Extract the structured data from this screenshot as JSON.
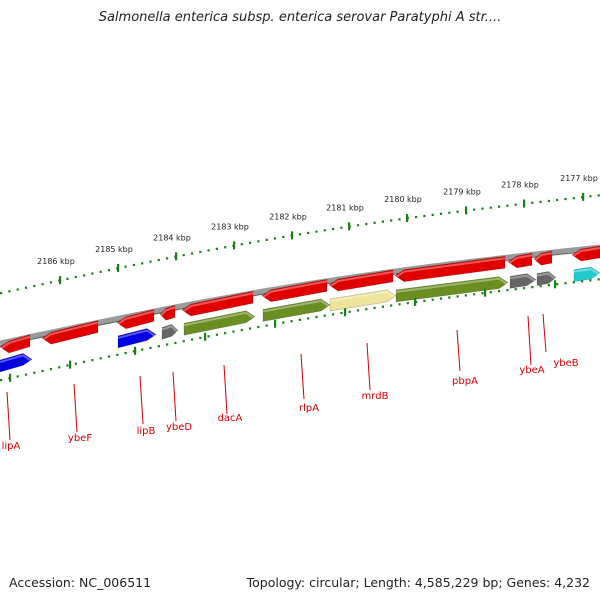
{
  "title": "Salmonella enterica subsp. enterica serovar Paratyphi A str....",
  "footer": {
    "accession": "Accession: NC_006511",
    "stats": "Topology: circular; Length: 4,585,229 bp; Genes: 4,232"
  },
  "colors": {
    "forward_gene": "#e00000",
    "reverse_green": "#6b8e23",
    "reverse_yellow": "#ede39a",
    "reverse_blue": "#0000e0",
    "reverse_gray": "#666666",
    "cyan": "#22cccc",
    "ring": "#888888",
    "tick": "#1a7f1a",
    "label": "#d40000"
  },
  "scale": {
    "unit": "kbp",
    "tick_labels": [
      "2177 kbp",
      "2178 kbp",
      "2179 kbp",
      "2180 kbp",
      "2181 kbp",
      "2182 kbp",
      "2183 kbp",
      "2184 kbp",
      "2185 kbp",
      "2186 kbp"
    ]
  },
  "gene_labels": [
    "ybeB",
    "ybeA",
    "pbpA",
    "mrdB",
    "rlpA",
    "dacA",
    "ybeD",
    "lipB",
    "ybeF",
    "lipA"
  ]
}
